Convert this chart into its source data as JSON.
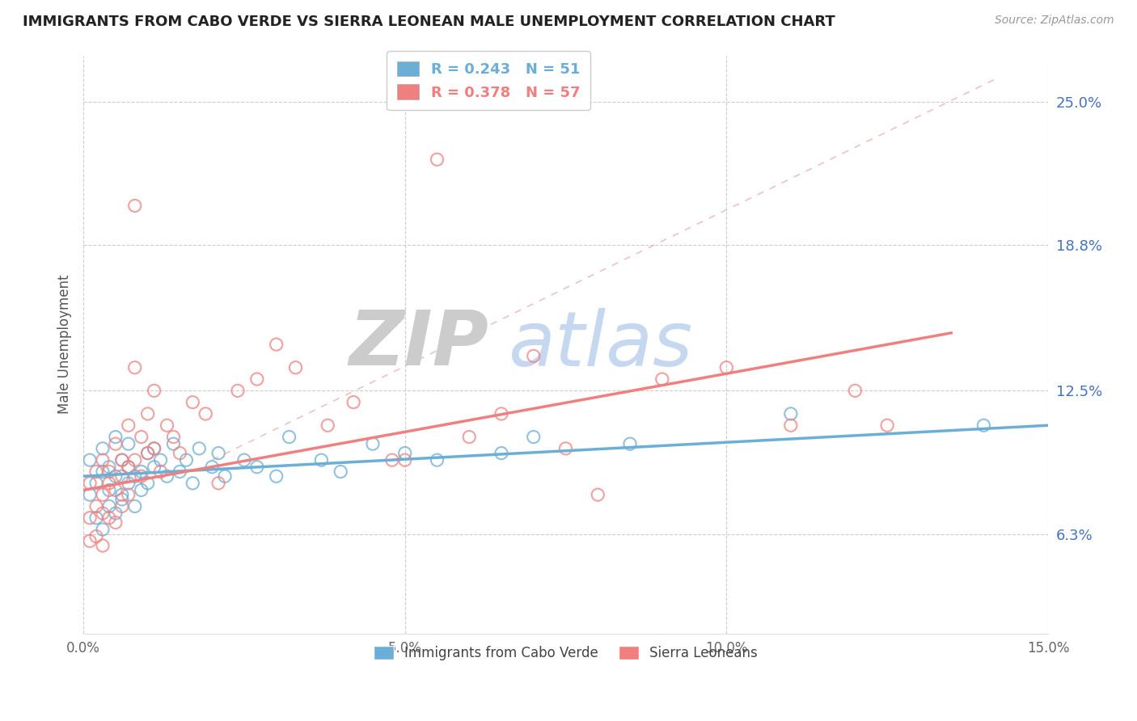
{
  "title": "IMMIGRANTS FROM CABO VERDE VS SIERRA LEONEAN MALE UNEMPLOYMENT CORRELATION CHART",
  "source": "Source: ZipAtlas.com",
  "ylabel": "Male Unemployment",
  "xmin": 0.0,
  "xmax": 0.15,
  "ymin": 2.0,
  "ymax": 27.0,
  "yticks": [
    6.3,
    12.5,
    18.8,
    25.0
  ],
  "ytick_labels": [
    "6.3%",
    "12.5%",
    "18.8%",
    "25.0%"
  ],
  "xticks": [
    0.0,
    0.05,
    0.1,
    0.15
  ],
  "xtick_labels": [
    "0.0%",
    "5.0%",
    "10.0%",
    "15.0%"
  ],
  "blue_R": 0.243,
  "blue_N": 51,
  "pink_R": 0.378,
  "pink_N": 57,
  "blue_color": "#6baed6",
  "pink_color": "#f08080",
  "blue_label": "Immigrants from Cabo Verde",
  "pink_label": "Sierra Leoneans",
  "watermark_zip": "ZIP",
  "watermark_atlas": "atlas",
  "watermark_zip_color": "#cccccc",
  "watermark_atlas_color": "#c5d8f0",
  "blue_scatter_x": [
    0.001,
    0.001,
    0.002,
    0.002,
    0.003,
    0.003,
    0.003,
    0.004,
    0.004,
    0.004,
    0.005,
    0.005,
    0.005,
    0.006,
    0.006,
    0.006,
    0.007,
    0.007,
    0.007,
    0.008,
    0.008,
    0.009,
    0.009,
    0.01,
    0.01,
    0.011,
    0.011,
    0.012,
    0.013,
    0.014,
    0.015,
    0.016,
    0.017,
    0.018,
    0.02,
    0.021,
    0.022,
    0.025,
    0.027,
    0.03,
    0.032,
    0.037,
    0.04,
    0.045,
    0.05,
    0.055,
    0.065,
    0.07,
    0.085,
    0.11,
    0.14
  ],
  "blue_scatter_y": [
    8.0,
    9.5,
    8.5,
    7.0,
    9.0,
    6.5,
    10.0,
    8.2,
    7.5,
    9.2,
    8.8,
    7.2,
    10.5,
    9.5,
    8.0,
    7.8,
    9.2,
    8.5,
    10.2,
    8.8,
    7.5,
    9.0,
    8.2,
    8.5,
    9.8,
    9.2,
    10.0,
    9.5,
    8.8,
    10.2,
    9.0,
    9.5,
    8.5,
    10.0,
    9.2,
    9.8,
    8.8,
    9.5,
    9.2,
    8.8,
    10.5,
    9.5,
    9.0,
    10.2,
    9.8,
    9.5,
    9.8,
    10.5,
    10.2,
    11.5,
    11.0
  ],
  "pink_scatter_x": [
    0.001,
    0.001,
    0.001,
    0.002,
    0.002,
    0.002,
    0.003,
    0.003,
    0.003,
    0.003,
    0.004,
    0.004,
    0.004,
    0.005,
    0.005,
    0.005,
    0.006,
    0.006,
    0.006,
    0.007,
    0.007,
    0.007,
    0.008,
    0.008,
    0.009,
    0.009,
    0.01,
    0.01,
    0.011,
    0.011,
    0.012,
    0.013,
    0.014,
    0.015,
    0.017,
    0.019,
    0.021,
    0.024,
    0.027,
    0.03,
    0.033,
    0.038,
    0.042,
    0.048,
    0.055,
    0.06,
    0.065,
    0.07,
    0.075,
    0.08,
    0.09,
    0.1,
    0.11,
    0.12,
    0.125,
    0.05,
    0.008
  ],
  "pink_scatter_y": [
    7.0,
    8.5,
    6.0,
    7.5,
    9.0,
    6.2,
    8.0,
    7.2,
    9.5,
    5.8,
    8.5,
    7.0,
    9.0,
    10.2,
    8.2,
    6.8,
    9.5,
    8.8,
    7.5,
    11.0,
    9.2,
    8.0,
    13.5,
    9.5,
    10.5,
    8.8,
    11.5,
    9.8,
    10.0,
    12.5,
    9.0,
    11.0,
    10.5,
    9.8,
    12.0,
    11.5,
    8.5,
    12.5,
    13.0,
    14.5,
    13.5,
    11.0,
    12.0,
    9.5,
    22.5,
    10.5,
    11.5,
    14.0,
    10.0,
    8.0,
    13.0,
    13.5,
    11.0,
    12.5,
    11.0,
    9.5,
    20.5
  ],
  "blue_trend_x0": 0.0,
  "blue_trend_x1": 0.15,
  "blue_trend_y0": 8.8,
  "blue_trend_y1": 11.0,
  "pink_trend_x0": 0.0,
  "pink_trend_x1": 0.135,
  "pink_trend_y0": 8.2,
  "pink_trend_y1": 15.0,
  "dash_trend_x0": 0.02,
  "dash_trend_x1": 0.142,
  "dash_trend_y0": 9.5,
  "dash_trend_y1": 26.0
}
